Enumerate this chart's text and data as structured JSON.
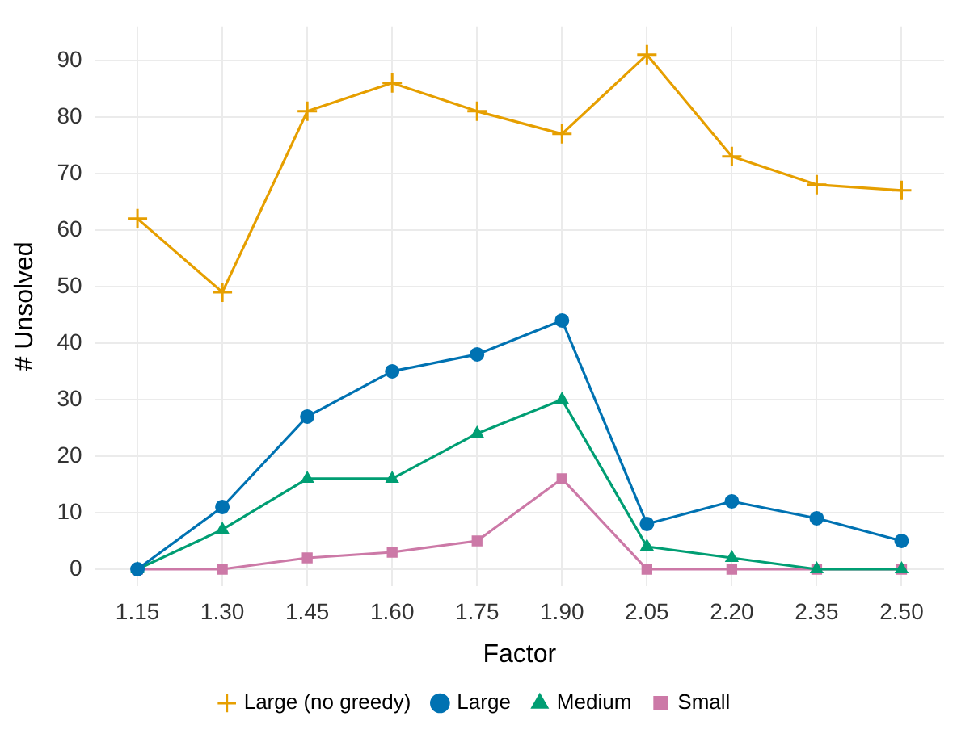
{
  "chart_data": {
    "type": "line",
    "xlabel": "Factor",
    "ylabel": "# Unsolved",
    "categories": [
      "1.15",
      "1.30",
      "1.45",
      "1.60",
      "1.75",
      "1.90",
      "2.05",
      "2.20",
      "2.35",
      "2.50"
    ],
    "series": [
      {
        "name": "Large (no greedy)",
        "color": "#e69f00",
        "marker": "cross",
        "values": [
          62,
          49,
          81,
          86,
          81,
          77,
          91,
          73,
          68,
          67
        ]
      },
      {
        "name": "Large",
        "color": "#0072b2",
        "marker": "circle",
        "values": [
          0,
          11,
          27,
          35,
          38,
          44,
          8,
          12,
          9,
          5
        ]
      },
      {
        "name": "Medium",
        "color": "#009e73",
        "marker": "triangle",
        "values": [
          0,
          7,
          16,
          16,
          24,
          30,
          4,
          2,
          0,
          0
        ]
      },
      {
        "name": "Small",
        "color": "#cc79a7",
        "marker": "square",
        "values": [
          0,
          0,
          2,
          3,
          5,
          16,
          0,
          0,
          0,
          0
        ]
      }
    ],
    "ylim": [
      -3,
      96
    ],
    "yticks": [
      0,
      10,
      20,
      30,
      40,
      50,
      60,
      70,
      80,
      90
    ],
    "grid": true,
    "legend": "bottom",
    "line_style": "solid"
  }
}
